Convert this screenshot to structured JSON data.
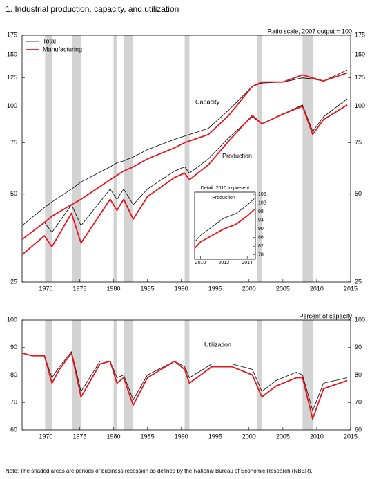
{
  "title": "1.  Industrial production, capacity, and utilization",
  "note": "Note: The shaded areas are periods of business recession as defined by the National Bureau of Economic Research (NBER).",
  "chart_data": [
    {
      "type": "line",
      "log_scale": true,
      "legend": "upper left",
      "annotations": [
        "Ratio scale, 2007 output = 100",
        "Capacity",
        "Production"
      ],
      "xlim": [
        1966.5,
        2015
      ],
      "xticks": [
        1970,
        1975,
        1980,
        1985,
        1990,
        1995,
        2000,
        2005,
        2010,
        2015
      ],
      "ylim": [
        25,
        175
      ],
      "yticks": [
        25,
        50,
        75,
        100,
        125,
        150,
        175
      ],
      "y2lim": [
        25,
        175
      ],
      "y2ticks": [
        25,
        50,
        75,
        100,
        125,
        150,
        175
      ],
      "recessions": [
        [
          1969.9,
          1970.9
        ],
        [
          1973.9,
          1975.2
        ],
        [
          1980.0,
          1980.5
        ],
        [
          1981.5,
          1982.9
        ],
        [
          1990.5,
          1991.2
        ],
        [
          2001.2,
          2001.9
        ],
        [
          2007.9,
          2009.5
        ]
      ],
      "x": [
        1966.5,
        1969.8,
        1970.9,
        1973.8,
        1975.2,
        1979.5,
        1980.5,
        1981.5,
        1982.9,
        1985,
        1989,
        1990.5,
        1991.2,
        1994,
        1997,
        2000.5,
        2001.9,
        2005,
        2007.9,
        2009.4,
        2011,
        2014.5
      ],
      "series": [
        {
          "name": "Total",
          "color": "#000000",
          "capacity": [
            39,
            45,
            47,
            52,
            55,
            62,
            64,
            65,
            67,
            71,
            77,
            79,
            80,
            84,
            97,
            117,
            120,
            121,
            125,
            124,
            122,
            133
          ],
          "production": [
            35,
            40,
            37,
            46,
            39,
            52,
            48,
            52,
            46,
            52,
            60,
            62,
            59,
            66,
            78,
            92,
            87,
            94,
            101,
            82,
            92,
            106
          ]
        },
        {
          "name": "Manufacturing",
          "color": "#e8141b",
          "capacity": [
            35,
            40,
            42,
            46,
            48,
            56,
            58,
            60,
            62,
            66,
            72,
            75,
            76,
            80,
            93,
            117,
            121,
            121,
            128,
            125,
            122,
            130
          ],
          "production": [
            31,
            36,
            33,
            43,
            34,
            48,
            44,
            48,
            41,
            49,
            57,
            59,
            56,
            63,
            76,
            93,
            87,
            94,
            100,
            80,
            90,
            101
          ]
        }
      ]
    },
    {
      "type": "line",
      "ytick_side": "right",
      "annotations": [
        "Detail: 2010 to present",
        "Production"
      ],
      "xlim": [
        2009.5,
        2014.7
      ],
      "xticks": [
        2010,
        2012,
        2014
      ],
      "ylim": [
        76,
        107
      ],
      "yticks": [
        78,
        82,
        86,
        90,
        94,
        98,
        102,
        106
      ],
      "x": [
        2009.5,
        2010,
        2011,
        2012,
        2013,
        2014,
        2014.6
      ],
      "series": [
        {
          "color": "#000000",
          "values": [
            84,
            87,
            91,
            95,
            97,
            101,
            104
          ]
        },
        {
          "color": "#e8141b",
          "values": [
            81,
            84,
            87,
            90,
            92,
            96,
            99
          ]
        }
      ]
    },
    {
      "type": "line",
      "annotations": [
        "Percent of capacity",
        "Utilization"
      ],
      "xlim": [
        1966.5,
        2015
      ],
      "xticks": [
        1970,
        1975,
        1980,
        1985,
        1990,
        1995,
        2000,
        2005,
        2010,
        2015
      ],
      "ylim": [
        60,
        100
      ],
      "yticks": [
        60,
        70,
        80,
        90,
        100
      ],
      "y2lim": [
        60,
        100
      ],
      "y2ticks": [
        60,
        70,
        80,
        90,
        100
      ],
      "recessions": [
        [
          1969.9,
          1970.9
        ],
        [
          1973.9,
          1975.2
        ],
        [
          1980.0,
          1980.5
        ],
        [
          1981.5,
          1982.9
        ],
        [
          1990.5,
          1991.2
        ],
        [
          2001.2,
          2001.9
        ],
        [
          2007.9,
          2009.5
        ]
      ],
      "x": [
        1966.5,
        1968,
        1969.8,
        1970.9,
        1972,
        1973.8,
        1975.2,
        1978,
        1979.5,
        1980.5,
        1981.5,
        1982.9,
        1985,
        1989,
        1990.5,
        1991.2,
        1994.5,
        1997.5,
        2000.5,
        2001.9,
        2004,
        2007,
        2007.9,
        2009.4,
        2011,
        2014.5
      ],
      "series": [
        {
          "color": "#000000",
          "values": [
            88,
            87,
            87,
            79,
            83,
            88.5,
            74,
            85,
            85,
            79,
            80,
            71,
            80,
            85,
            83,
            79,
            84,
            84,
            82,
            74,
            78,
            81,
            80,
            67,
            77,
            79
          ]
        },
        {
          "color": "#e8141b",
          "values": [
            88,
            87,
            87,
            77,
            82,
            88,
            72,
            84,
            85,
            77,
            79,
            69,
            79,
            85,
            82,
            77,
            83,
            83,
            80,
            72,
            76,
            79,
            79,
            64,
            75,
            78
          ]
        }
      ]
    }
  ]
}
